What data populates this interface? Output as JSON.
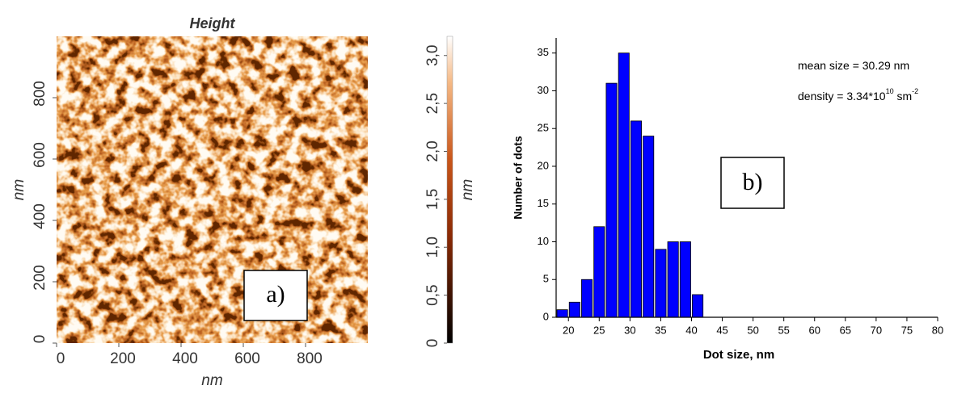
{
  "chart_data": [
    {
      "type": "image",
      "title": "Height",
      "xlabel": "nm",
      "ylabel": "nm",
      "xlim": [
        0,
        1000
      ],
      "ylim": [
        0,
        1000
      ],
      "xticks": [
        0,
        200,
        400,
        600,
        800
      ],
      "yticks": [
        0,
        200,
        400,
        600,
        800
      ],
      "colorbar": {
        "label": "nm",
        "zlim": [
          0,
          3.2
        ],
        "ticks": [
          0,
          {
            "value": 0.5,
            "label": "0,5"
          },
          {
            "value": 1,
            "label": "1,0"
          },
          {
            "value": 1.5,
            "label": "1,5"
          },
          {
            "value": 2,
            "label": "2,0"
          },
          {
            "value": 2.5,
            "label": "2,5"
          },
          {
            "value": 3,
            "label": "3,0"
          }
        ]
      },
      "panel_label": "a)"
    },
    {
      "type": "histogram",
      "xlabel": "Dot size, nm",
      "ylabel": "Number of dots",
      "bins": [
        18,
        20,
        22,
        24,
        26,
        28,
        30,
        32,
        34,
        36,
        38,
        40,
        42
      ],
      "values": [
        1,
        2,
        5,
        12,
        31,
        35,
        26,
        24,
        9,
        10,
        10,
        3
      ],
      "color": "#0000ff",
      "xlim": [
        18,
        80
      ],
      "ylim": [
        0,
        37
      ],
      "xticks": [
        20,
        25,
        30,
        35,
        40,
        45,
        50,
        55,
        60,
        65,
        70,
        75,
        80
      ],
      "yticks": [
        0,
        5,
        10,
        15,
        20,
        25,
        30,
        35
      ],
      "annotations": [
        {
          "text": "mean size = 30.29 nm"
        },
        {
          "text": "density = 3.34*10",
          "sup": "10",
          "unit": " sm",
          "unit_sup": "-2"
        }
      ],
      "panel_label": "b)"
    }
  ]
}
